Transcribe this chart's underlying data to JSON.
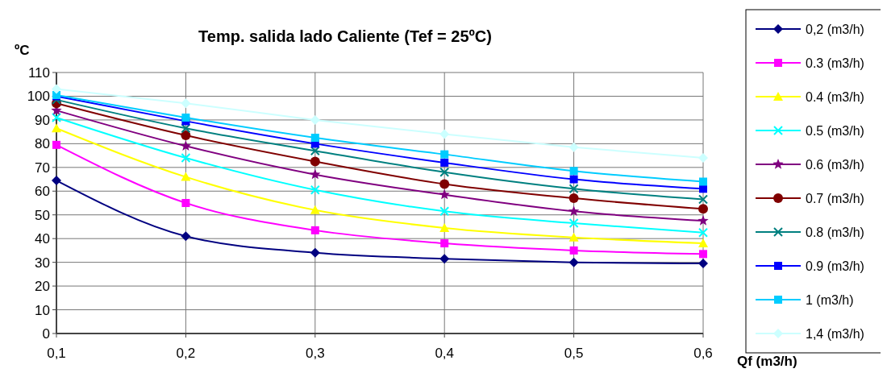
{
  "chart_data": {
    "type": "line",
    "title": "Temp. salida lado Caliente (Tef = 25ºC)",
    "ylabel": "ºC",
    "xlabel": "Qf (m3/h)",
    "x": [
      0.1,
      0.2,
      0.3,
      0.4,
      0.5,
      0.6
    ],
    "xlim": [
      0.1,
      0.6
    ],
    "xticks": [
      {
        "value": 0.1,
        "label": "0,1"
      },
      {
        "value": 0.2,
        "label": "0,2"
      },
      {
        "value": 0.3,
        "label": "0,3"
      },
      {
        "value": 0.4,
        "label": "0,4"
      },
      {
        "value": 0.5,
        "label": "0,5"
      },
      {
        "value": 0.6,
        "label": "0,6"
      }
    ],
    "ylim": [
      0,
      110
    ],
    "yticks": [
      0,
      10,
      20,
      30,
      40,
      50,
      60,
      70,
      80,
      90,
      100,
      110
    ],
    "grid": true,
    "legend": "right",
    "series": [
      {
        "name": "0,2 (m3/h)",
        "color": "#000080",
        "marker": "diamond",
        "values": [
          64.5,
          41,
          34,
          31.5,
          30,
          29.5
        ]
      },
      {
        "name": "0.3 (m3/h)",
        "color": "#ff00ff",
        "marker": "square",
        "values": [
          79.5,
          55,
          43.5,
          38,
          35,
          33.5
        ]
      },
      {
        "name": "0.4 (m3/h)",
        "color": "#ffff00",
        "marker": "triangle",
        "values": [
          86.5,
          66,
          52,
          44.5,
          40.5,
          38
        ]
      },
      {
        "name": "0.5 (m3/h)",
        "color": "#00ffff",
        "marker": "cross",
        "values": [
          91,
          74,
          60.5,
          51.5,
          46.5,
          42.5
        ]
      },
      {
        "name": "0.6 (m3/h)",
        "color": "#800080",
        "marker": "star",
        "values": [
          94,
          79,
          67,
          58.5,
          51.5,
          47.5
        ]
      },
      {
        "name": "0.7 (m3/h)",
        "color": "#800000",
        "marker": "circle",
        "values": [
          97,
          83.5,
          72.5,
          63,
          57,
          52.5
        ]
      },
      {
        "name": "0.8 (m3/h)",
        "color": "#008080",
        "marker": "cross",
        "values": [
          98.5,
          86.5,
          77,
          68,
          61,
          56.5
        ]
      },
      {
        "name": "0.9 (m3/h)",
        "color": "#0000ff",
        "marker": "square",
        "values": [
          100,
          89.5,
          80,
          72,
          65,
          61
        ]
      },
      {
        "name": "1 (m3/h)",
        "color": "#00ccff",
        "marker": "square",
        "values": [
          100.5,
          91,
          82.5,
          75.5,
          68.5,
          64
        ]
      },
      {
        "name": "1,4 (m3/h)",
        "color": "#ccffff",
        "marker": "diamond",
        "values": [
          103,
          97,
          90,
          84,
          78.5,
          74
        ]
      }
    ]
  }
}
